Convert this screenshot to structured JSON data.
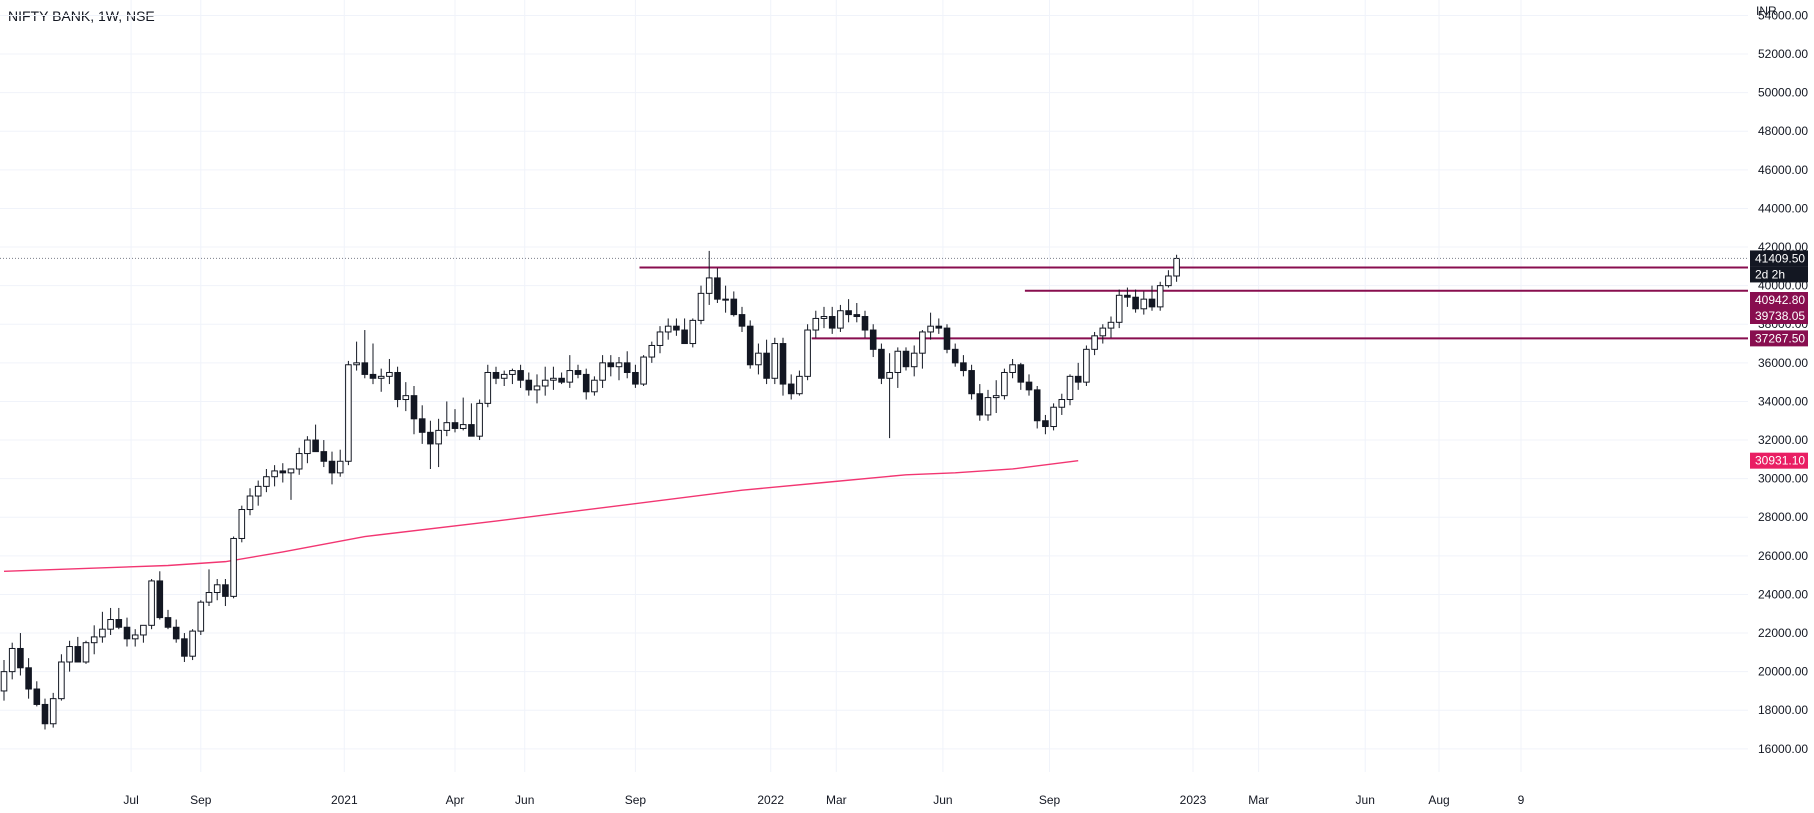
{
  "legend": {
    "symbol": "NIFTY BANK, 1W, NSE"
  },
  "currency": "INR",
  "colors": {
    "grid": "#f0f3fa",
    "candle_up_fill": "#ffffff",
    "candle_down_fill": "#131722",
    "candle_stroke": "#131722",
    "level_line": "#880e4f",
    "ma_line": "#f23672",
    "last_price_bg": "#131722",
    "level_badge_bg": "#880e4f",
    "ma_badge_bg": "#e91e63",
    "price_dotted_line": "#7b7f8a"
  },
  "chart_data": {
    "type": "candlestick",
    "interval": "1W",
    "ylim": [
      14800,
      54800
    ],
    "y_ticks": [
      16000,
      18000,
      20000,
      22000,
      24000,
      26000,
      28000,
      30000,
      32000,
      34000,
      36000,
      38000,
      40000,
      42000,
      44000,
      46000,
      48000,
      50000,
      52000,
      54000
    ],
    "y_tick_labels": [
      "16000.00",
      "18000.00",
      "20000.00",
      "22000.00",
      "24000.00",
      "26000.00",
      "28000.00",
      "30000.00",
      "32000.00",
      "34000.00",
      "36000.00",
      "38000.00",
      "40000.00",
      "42000.00",
      "44000.00",
      "46000.00",
      "48000.00",
      "50000.00",
      "52000.00",
      "54000.00"
    ],
    "x_ticks": [
      {
        "label": "Jul",
        "bar": 15.5
      },
      {
        "label": "Sep",
        "bar": 24
      },
      {
        "label": "2021",
        "bar": 41.5
      },
      {
        "label": "Apr",
        "bar": 55
      },
      {
        "label": "Jun",
        "bar": 63.5
      },
      {
        "label": "Sep",
        "bar": 77
      },
      {
        "label": "2022",
        "bar": 93.5
      },
      {
        "label": "Mar",
        "bar": 101.5
      },
      {
        "label": "Jun",
        "bar": 114.5
      },
      {
        "label": "Sep",
        "bar": 127.5
      },
      {
        "label": "2023",
        "bar": 145
      },
      {
        "label": "Mar",
        "bar": 153
      },
      {
        "label": "Jun",
        "bar": 166
      },
      {
        "label": "Aug",
        "bar": 175
      },
      {
        "label": "9",
        "bar": 185
      }
    ],
    "ohlc": [
      [
        19000,
        20600,
        18500,
        20000
      ],
      [
        20000,
        21500,
        19600,
        21200
      ],
      [
        21200,
        22000,
        19800,
        20200
      ],
      [
        20200,
        20700,
        18600,
        19100
      ],
      [
        19100,
        19500,
        18200,
        18300
      ],
      [
        18300,
        18600,
        17000,
        17300
      ],
      [
        17300,
        18900,
        17100,
        18600
      ],
      [
        18600,
        20900,
        18500,
        20500
      ],
      [
        20500,
        21600,
        20000,
        21300
      ],
      [
        21300,
        21800,
        20800,
        20500
      ],
      [
        20500,
        21600,
        20400,
        21500
      ],
      [
        21500,
        22400,
        20900,
        21800
      ],
      [
        21800,
        23100,
        21500,
        22200
      ],
      [
        22200,
        23300,
        21900,
        22700
      ],
      [
        22700,
        23300,
        22200,
        22300
      ],
      [
        22300,
        22800,
        21300,
        21700
      ],
      [
        21700,
        22200,
        21300,
        21900
      ],
      [
        21900,
        22400,
        21500,
        22400
      ],
      [
        22400,
        24800,
        22200,
        24700
      ],
      [
        24700,
        25200,
        22700,
        22800
      ],
      [
        22800,
        23200,
        22200,
        22300
      ],
      [
        22300,
        22700,
        21500,
        21700
      ],
      [
        21700,
        22000,
        20500,
        20800
      ],
      [
        20800,
        22200,
        20600,
        22100
      ],
      [
        22100,
        23700,
        21900,
        23600
      ],
      [
        23600,
        25300,
        23400,
        24100
      ],
      [
        24100,
        24800,
        23700,
        24500
      ],
      [
        24500,
        24800,
        23400,
        23900
      ],
      [
        23900,
        27000,
        23800,
        26900
      ],
      [
        26900,
        28600,
        26700,
        28400
      ],
      [
        28400,
        29500,
        28100,
        29100
      ],
      [
        29100,
        29900,
        28600,
        29600
      ],
      [
        29600,
        30500,
        29300,
        30100
      ],
      [
        30100,
        30700,
        29600,
        30400
      ],
      [
        30400,
        30800,
        29800,
        30300
      ],
      [
        30300,
        30500,
        28900,
        30500
      ],
      [
        30500,
        31600,
        30200,
        31300
      ],
      [
        31300,
        32200,
        30800,
        32000
      ],
      [
        32000,
        32800,
        31800,
        31400
      ],
      [
        31400,
        32000,
        30600,
        30900
      ],
      [
        30900,
        31400,
        29700,
        30300
      ],
      [
        30300,
        31500,
        30100,
        30900
      ],
      [
        30900,
        36100,
        30700,
        35900
      ],
      [
        35900,
        37100,
        35600,
        36000
      ],
      [
        36000,
        37700,
        35200,
        35400
      ],
      [
        35400,
        37000,
        34900,
        35200
      ],
      [
        35200,
        35700,
        34500,
        35300
      ],
      [
        35300,
        36200,
        34900,
        35500
      ],
      [
        35500,
        35800,
        33700,
        34100
      ],
      [
        34100,
        35000,
        33500,
        34300
      ],
      [
        34300,
        34800,
        32300,
        33100
      ],
      [
        33100,
        33800,
        31800,
        32400
      ],
      [
        32400,
        33000,
        30500,
        31800
      ],
      [
        31800,
        33100,
        30600,
        32500
      ],
      [
        32500,
        34000,
        32200,
        32900
      ],
      [
        32900,
        33600,
        32400,
        32600
      ],
      [
        32600,
        34200,
        32500,
        32800
      ],
      [
        32800,
        33900,
        32200,
        32200
      ],
      [
        32200,
        34100,
        32000,
        33900
      ],
      [
        33900,
        35900,
        33700,
        35500
      ],
      [
        35500,
        35800,
        34900,
        35200
      ],
      [
        35200,
        35600,
        34800,
        35400
      ],
      [
        35400,
        35700,
        34900,
        35600
      ],
      [
        35600,
        35900,
        34700,
        35100
      ],
      [
        35100,
        35500,
        34300,
        34600
      ],
      [
        34600,
        35400,
        33900,
        34800
      ],
      [
        34800,
        35800,
        34300,
        35100
      ],
      [
        35100,
        35800,
        34600,
        35200
      ],
      [
        35200,
        35500,
        34900,
        35000
      ],
      [
        35000,
        36400,
        34700,
        35600
      ],
      [
        35600,
        35900,
        35200,
        35400
      ],
      [
        35400,
        35700,
        34100,
        34500
      ],
      [
        34500,
        35300,
        34300,
        35100
      ],
      [
        35100,
        36400,
        34700,
        36000
      ],
      [
        36000,
        36400,
        35300,
        35800
      ],
      [
        35800,
        36300,
        35100,
        36000
      ],
      [
        36000,
        36600,
        35200,
        35500
      ],
      [
        35500,
        35900,
        34700,
        34900
      ],
      [
        34900,
        36400,
        34800,
        36300
      ],
      [
        36300,
        37100,
        36000,
        36900
      ],
      [
        36900,
        37900,
        36500,
        37600
      ],
      [
        37600,
        38300,
        37200,
        37900
      ],
      [
        37900,
        38300,
        37400,
        37700
      ],
      [
        37700,
        38300,
        37300,
        37000
      ],
      [
        37000,
        38300,
        36800,
        38200
      ],
      [
        38200,
        40000,
        38000,
        39600
      ],
      [
        39600,
        41800,
        39000,
        40400
      ],
      [
        40400,
        40900,
        39100,
        39300
      ],
      [
        39300,
        40000,
        38600,
        39300
      ],
      [
        39300,
        39700,
        38400,
        38500
      ],
      [
        38500,
        38900,
        37600,
        37900
      ],
      [
        37900,
        38200,
        35700,
        35900
      ],
      [
        35900,
        37000,
        35400,
        36500
      ],
      [
        36500,
        37200,
        34900,
        35200
      ],
      [
        35200,
        37300,
        34900,
        37000
      ],
      [
        37000,
        37300,
        34300,
        34900
      ],
      [
        34900,
        35400,
        34100,
        34400
      ],
      [
        34400,
        35600,
        34300,
        35300
      ],
      [
        35300,
        38000,
        35100,
        37700
      ],
      [
        37700,
        38700,
        37300,
        38300
      ],
      [
        38300,
        38900,
        37800,
        38400
      ],
      [
        38400,
        38900,
        37500,
        37800
      ],
      [
        37800,
        39000,
        37600,
        38700
      ],
      [
        38700,
        39300,
        38100,
        38500
      ],
      [
        38500,
        39100,
        38100,
        38400
      ],
      [
        38400,
        38700,
        37300,
        37700
      ],
      [
        37700,
        38000,
        36300,
        36700
      ],
      [
        36700,
        37000,
        34900,
        35200
      ],
      [
        35200,
        36500,
        32100,
        35500
      ],
      [
        35500,
        36800,
        34700,
        36600
      ],
      [
        36600,
        36800,
        35600,
        35800
      ],
      [
        35800,
        36900,
        35300,
        36500
      ],
      [
        36500,
        37700,
        35700,
        37600
      ],
      [
        37600,
        38600,
        37200,
        37900
      ],
      [
        37900,
        38300,
        37500,
        37800
      ],
      [
        37800,
        38000,
        36500,
        36700
      ],
      [
        36700,
        37000,
        35800,
        36000
      ],
      [
        36000,
        36400,
        35300,
        35600
      ],
      [
        35600,
        35900,
        34100,
        34400
      ],
      [
        34400,
        34900,
        33000,
        33300
      ],
      [
        33300,
        34600,
        33000,
        34200
      ],
      [
        34200,
        35100,
        33400,
        34300
      ],
      [
        34300,
        35700,
        34100,
        35500
      ],
      [
        35500,
        36200,
        35200,
        35900
      ],
      [
        35900,
        36000,
        34600,
        35000
      ],
      [
        35000,
        35400,
        34300,
        34600
      ],
      [
        34600,
        34800,
        32600,
        33000
      ],
      [
        33000,
        33300,
        32300,
        32700
      ],
      [
        32700,
        33900,
        32500,
        33700
      ],
      [
        33700,
        34400,
        33300,
        34100
      ],
      [
        34100,
        35400,
        33800,
        35300
      ],
      [
        35300,
        36000,
        34600,
        35000
      ],
      [
        35000,
        36900,
        34800,
        36700
      ],
      [
        36700,
        37600,
        36400,
        37400
      ],
      [
        37400,
        38000,
        37000,
        37800
      ],
      [
        37800,
        38400,
        37300,
        38100
      ],
      [
        38100,
        39800,
        37800,
        39500
      ],
      [
        39500,
        39900,
        38900,
        39400
      ],
      [
        39400,
        39800,
        38600,
        38800
      ],
      [
        38800,
        39700,
        38500,
        39300
      ],
      [
        39300,
        40000,
        38700,
        38900
      ],
      [
        38900,
        40200,
        38700,
        40000
      ],
      [
        40000,
        40800,
        39900,
        40500
      ],
      [
        40500,
        41600,
        40200,
        41409.5
      ]
    ],
    "ma": [
      {
        "bar": 0,
        "value": 25200
      },
      {
        "bar": 20,
        "value": 25500
      },
      {
        "bar": 27,
        "value": 25700
      },
      {
        "bar": 34,
        "value": 26200
      },
      {
        "bar": 44,
        "value": 27000
      },
      {
        "bar": 60,
        "value": 27800
      },
      {
        "bar": 75,
        "value": 28600
      },
      {
        "bar": 90,
        "value": 29400
      },
      {
        "bar": 100,
        "value": 29800
      },
      {
        "bar": 110,
        "value": 30200
      },
      {
        "bar": 116,
        "value": 30300
      },
      {
        "bar": 123,
        "value": 30500
      },
      {
        "bar": 131,
        "value": 30931.1
      }
    ],
    "levels": [
      {
        "value": 40942.8,
        "from_bar": 77.5
      },
      {
        "value": 39738.05,
        "from_bar": 124.5
      },
      {
        "value": 37267.5,
        "from_bar": 98.5
      }
    ],
    "last_price": 41409.5,
    "grid": true
  },
  "badges": {
    "last_price": "41409.50",
    "countdown": "2d 2h",
    "level_1": "40942.80",
    "level_2": "39738.05",
    "level_3": "37267.50",
    "ma": "30931.10"
  }
}
